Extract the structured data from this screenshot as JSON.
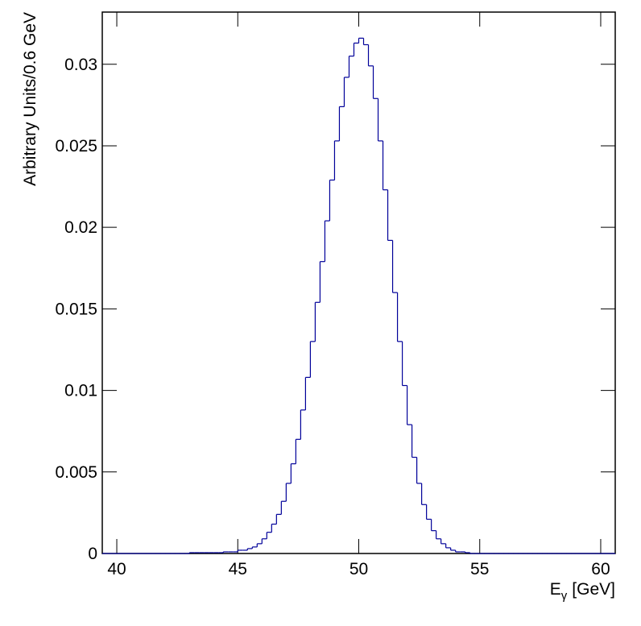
{
  "chart_data": {
    "type": "histogram",
    "x_label": {
      "main": "E",
      "sub": "γ",
      "unit": "[GeV]"
    },
    "y_label": "Arbitrary Units/0.6 GeV",
    "color": "#000099",
    "bins": [
      39.4,
      39.6,
      39.8,
      40.0,
      40.2,
      40.4,
      40.6,
      40.8,
      41.0,
      41.2,
      41.4,
      41.6,
      41.8,
      42.0,
      42.2,
      42.4,
      42.6,
      42.8,
      43.0,
      43.2,
      43.4,
      43.6,
      43.8,
      44.0,
      44.2,
      44.4,
      44.6,
      44.8,
      45.0,
      45.2,
      45.4,
      45.6,
      45.8,
      46.0,
      46.2,
      46.4,
      46.6,
      46.8,
      47.0,
      47.2,
      47.4,
      47.6,
      47.8,
      48.0,
      48.2,
      48.4,
      48.6,
      48.8,
      49.0,
      49.2,
      49.4,
      49.6,
      49.8,
      50.0,
      50.2,
      50.4,
      50.6,
      50.8,
      51.0,
      51.2,
      51.4,
      51.6,
      51.8,
      52.0,
      52.2,
      52.4,
      52.6,
      52.8,
      53.0,
      53.2,
      53.4,
      53.6,
      53.8,
      54.0,
      54.2,
      54.4,
      54.6,
      54.8,
      55.0,
      55.2,
      55.4,
      55.6,
      55.8,
      56.0,
      56.2,
      56.4,
      56.6,
      56.8,
      57.0,
      57.2,
      57.4,
      57.6,
      57.8,
      58.0,
      58.2,
      58.4,
      58.6,
      58.8,
      59.0,
      59.2,
      59.4,
      59.6,
      59.8,
      60.0,
      60.2,
      60.4,
      60.6
    ],
    "values": [
      0,
      0,
      0,
      0,
      0,
      0,
      0,
      0,
      0,
      0,
      0,
      0,
      0,
      0,
      0,
      0,
      0,
      0,
      5e-05,
      5e-05,
      5e-05,
      5e-05,
      5e-05,
      5e-05,
      5e-05,
      0.0001,
      0.0001,
      0.0001,
      0.0002,
      0.0002,
      0.0003,
      0.0004,
      0.0006,
      0.0009,
      0.0013,
      0.0018,
      0.0024,
      0.0032,
      0.0043,
      0.0055,
      0.007,
      0.0088,
      0.0108,
      0.013,
      0.0154,
      0.0179,
      0.0204,
      0.0229,
      0.0253,
      0.0274,
      0.0292,
      0.0305,
      0.0313,
      0.0316,
      0.0312,
      0.0299,
      0.0279,
      0.0253,
      0.0223,
      0.0192,
      0.016,
      0.013,
      0.0103,
      0.0079,
      0.0059,
      0.0043,
      0.003,
      0.0021,
      0.0014,
      0.0009,
      0.0006,
      0.00035,
      0.0002,
      0.0001,
      0.0001,
      5e-05,
      0,
      0,
      0,
      0,
      0,
      0,
      0,
      0,
      0,
      0,
      0,
      0,
      0,
      0,
      0,
      0,
      0,
      0,
      0,
      0,
      0,
      0,
      0,
      0,
      0,
      0,
      0,
      0,
      0,
      0
    ],
    "xlim": [
      39.4,
      60.6
    ],
    "ylim": [
      0,
      0.0332
    ],
    "xticks": [
      40,
      45,
      50,
      55,
      60
    ],
    "yticks": [
      0,
      0.005,
      0.01,
      0.015,
      0.02,
      0.025,
      0.03
    ]
  }
}
